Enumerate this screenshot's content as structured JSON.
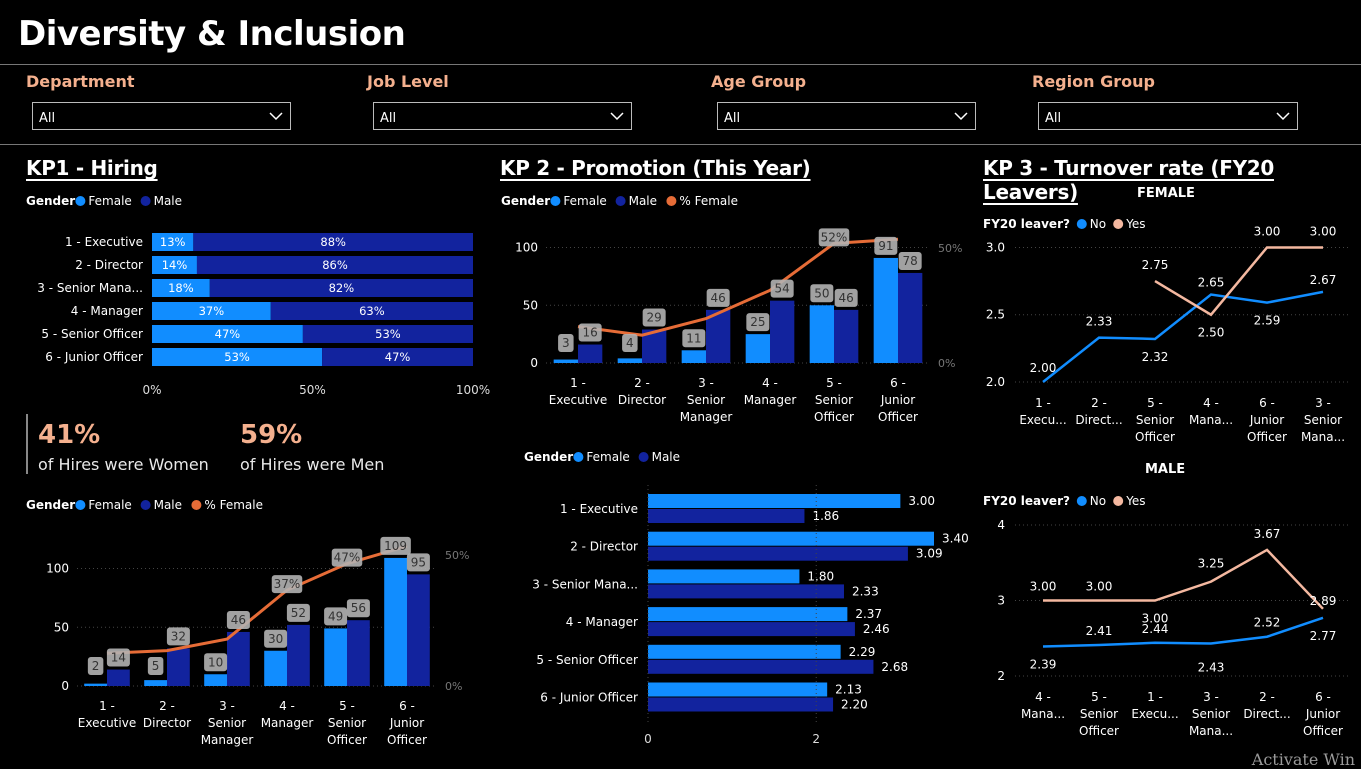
{
  "header": {
    "title": "Diversity & Inclusion"
  },
  "filters": [
    {
      "label": "Department",
      "value": "All"
    },
    {
      "label": "Job Level",
      "value": "All"
    },
    {
      "label": "Age Group",
      "value": "All"
    },
    {
      "label": "Region Group",
      "value": "All"
    }
  ],
  "colors": {
    "female": "#118dff",
    "male": "#12239e",
    "pct_female": "#e66c37",
    "yes": "#f4b8a0",
    "no": "#118dff",
    "accent": "#f4b08e"
  },
  "kp1": {
    "title": "KP1 - Hiring",
    "kpi": [
      {
        "value": "41%",
        "label": "of Hires were Women"
      },
      {
        "value": "59%",
        "label": "of Hires were Men"
      }
    ]
  },
  "kp2": {
    "title": "KP 2 - Promotion (This Year)"
  },
  "kp3": {
    "title": "KP 3 - Turnover rate (FY20 Leavers)",
    "female_title": "FEMALE",
    "male_title": "MALE"
  },
  "watermark": "Activate Win",
  "chart_data": [
    {
      "id": "hiring_pct",
      "type": "bar",
      "stacked": "100%",
      "legend": {
        "title": "Gender",
        "entries": [
          "Female",
          "Male"
        ]
      },
      "categories": [
        "1 - Executive",
        "2 - Director",
        "3 - Senior Mana...",
        "4 - Manager",
        "5 - Senior Officer",
        "6 - Junior Officer"
      ],
      "series": [
        {
          "name": "Female",
          "values": [
            13,
            14,
            18,
            37,
            47,
            53
          ],
          "labels": [
            "13%",
            "14%",
            "18%",
            "37%",
            "47%",
            "53%"
          ]
        },
        {
          "name": "Male",
          "values": [
            88,
            86,
            82,
            63,
            53,
            47
          ],
          "labels": [
            "88%",
            "86%",
            "82%",
            "63%",
            "53%",
            "47%"
          ]
        }
      ],
      "xticks": [
        "0%",
        "50%",
        "100%"
      ]
    },
    {
      "id": "hiring_counts",
      "type": "bar",
      "legend": {
        "title": "Gender",
        "entries": [
          "Female",
          "Male",
          "% Female"
        ]
      },
      "categories": [
        "1 - Executive",
        "2 - Director",
        "3 - Senior Manager",
        "4 - Manager",
        "5 - Senior Officer",
        "6 - Junior Officer"
      ],
      "series": [
        {
          "name": "Female",
          "values": [
            2,
            5,
            10,
            30,
            49,
            109
          ]
        },
        {
          "name": "Male",
          "values": [
            14,
            32,
            46,
            52,
            56,
            95
          ]
        },
        {
          "name": "% Female",
          "type": "line",
          "values": [
            12.5,
            13.5,
            17.9,
            36.6,
            46.7,
            53.4
          ],
          "labels": [
            "",
            "",
            "",
            "37%",
            "47%",
            ""
          ]
        }
      ],
      "yticks": [
        "0",
        "50",
        "100"
      ],
      "y2ticks": [
        "0%",
        "50%"
      ],
      "ylim": [
        0,
        120
      ]
    },
    {
      "id": "promotion_counts",
      "type": "bar",
      "legend": {
        "title": "Gender",
        "entries": [
          "Female",
          "Male",
          "% Female"
        ]
      },
      "categories": [
        "1 - Executive",
        "2 - Director",
        "3 - Senior Manager",
        "4 - Manager",
        "5 - Senior Officer",
        "6 - Junior Officer"
      ],
      "series": [
        {
          "name": "Female",
          "values": [
            3,
            4,
            11,
            25,
            50,
            91
          ]
        },
        {
          "name": "Male",
          "values": [
            16,
            29,
            46,
            54,
            46,
            78
          ]
        },
        {
          "name": "% Female",
          "type": "line",
          "values": [
            15.8,
            12.1,
            19.3,
            31.6,
            52,
            53.8
          ],
          "labels": [
            "",
            "",
            "",
            "",
            "52%",
            ""
          ]
        }
      ],
      "yticks": [
        "0",
        "50",
        "100"
      ],
      "y2ticks": [
        "0%",
        "50%"
      ],
      "ylim": [
        0,
        110
      ]
    },
    {
      "id": "promotion_rate",
      "type": "bar",
      "orientation": "horizontal",
      "legend": {
        "title": "Gender",
        "entries": [
          "Female",
          "Male"
        ]
      },
      "categories": [
        "1 - Executive",
        "2 - Director",
        "3 - Senior Mana...",
        "4 - Manager",
        "5 - Senior Officer",
        "6 - Junior Officer"
      ],
      "series": [
        {
          "name": "Female",
          "values": [
            3.0,
            3.4,
            1.8,
            2.37,
            2.29,
            2.13
          ],
          "labels": [
            "3.00",
            "3.40",
            "1.80",
            "2.37",
            "2.29",
            "2.13"
          ]
        },
        {
          "name": "Male",
          "values": [
            1.86,
            3.09,
            2.33,
            2.46,
            2.68,
            2.2
          ],
          "labels": [
            "1.86",
            "3.09",
            "2.33",
            "2.46",
            "2.68",
            "2.20"
          ]
        }
      ],
      "xticks": [
        "0",
        "2"
      ],
      "xlim": [
        0,
        3.4
      ]
    },
    {
      "id": "turnover_female",
      "type": "line",
      "title": "FEMALE",
      "legend": {
        "title": "FY20 leaver?",
        "entries": [
          "No",
          "Yes"
        ]
      },
      "categories": [
        "1 - Execu...",
        "2 - Direct...",
        "5 - Senior Officer",
        "4 - Mana...",
        "6 - Junior Officer",
        "3 - Senior Mana..."
      ],
      "series": [
        {
          "name": "No",
          "values": [
            2.0,
            2.33,
            2.32,
            2.65,
            2.59,
            2.67
          ],
          "labels": [
            "2.00",
            "2.33",
            "2.32",
            "2.65",
            "2.59",
            "2.67"
          ]
        },
        {
          "name": "Yes",
          "values": [
            null,
            null,
            2.75,
            2.5,
            3.0,
            3.0
          ],
          "labels": [
            "",
            "",
            "2.75",
            "2.50",
            "3.00",
            "3.00"
          ]
        }
      ],
      "yticks": [
        "2.0",
        "2.5",
        "3.0"
      ],
      "ylim": [
        2.0,
        3.1
      ]
    },
    {
      "id": "turnover_male",
      "type": "line",
      "title": "MALE",
      "legend": {
        "title": "FY20 leaver?",
        "entries": [
          "No",
          "Yes"
        ]
      },
      "categories": [
        "4 - Mana...",
        "5 - Senior Officer",
        "1 - Execu...",
        "3 - Senior Mana...",
        "2 - Direct...",
        "6 - Junior Officer"
      ],
      "series": [
        {
          "name": "No",
          "values": [
            2.39,
            2.41,
            2.44,
            2.43,
            2.52,
            2.77
          ],
          "labels": [
            "2.39",
            "2.41",
            "2.44",
            "2.43",
            "2.52",
            "2.77"
          ]
        },
        {
          "name": "Yes",
          "values": [
            3.0,
            3.0,
            3.0,
            3.25,
            3.67,
            2.89
          ],
          "labels": [
            "3.00",
            "3.00",
            "3.00",
            "3.25",
            "3.67",
            "2.89"
          ]
        }
      ],
      "yticks": [
        "2",
        "3",
        "4"
      ],
      "ylim": [
        2,
        4
      ]
    }
  ]
}
